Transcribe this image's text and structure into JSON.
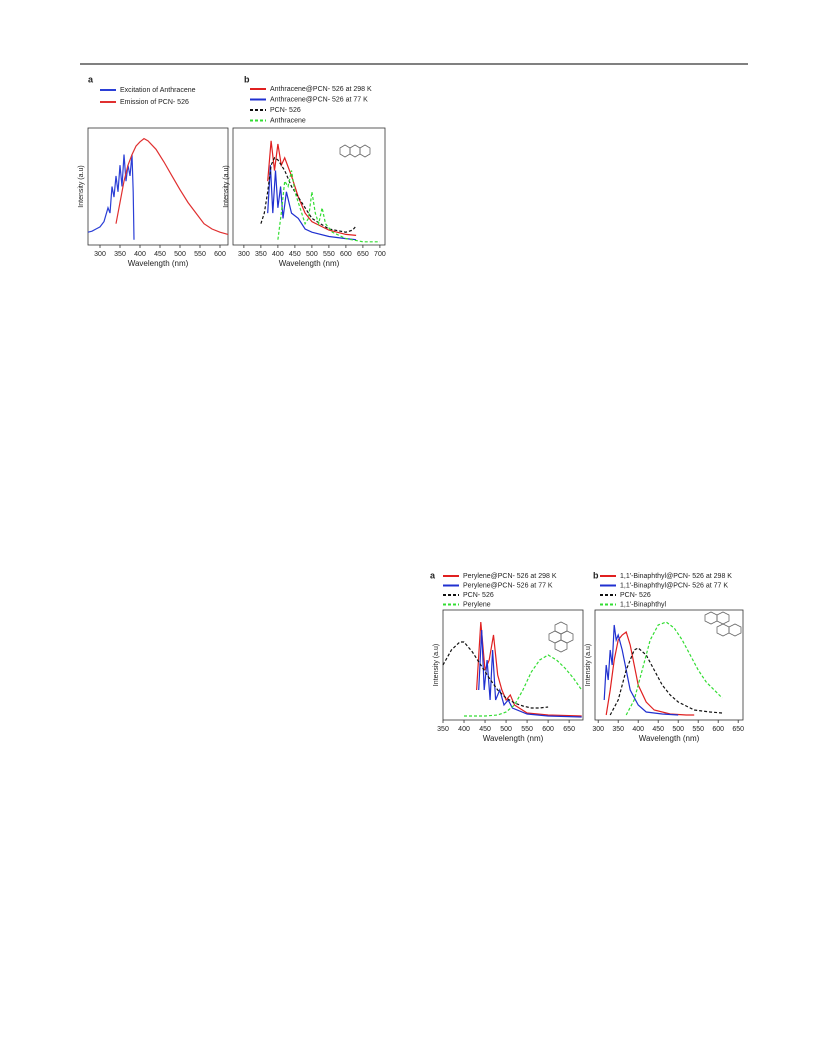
{
  "chart_data": [
    {
      "type": "line",
      "panel": "a",
      "xlabel": "Wavelength (nm)",
      "ylabel": "Intensity (a.u)",
      "xlim": [
        270,
        620
      ],
      "xticks": [
        300,
        350,
        400,
        450,
        500,
        550,
        600
      ],
      "ylim": [
        0,
        1.1
      ],
      "series": [
        {
          "name": "Excitation of Anthracene",
          "color": "#2b3fd6",
          "dash": false,
          "x": [
            270,
            280,
            290,
            300,
            310,
            320,
            325,
            330,
            335,
            340,
            345,
            350,
            355,
            360,
            365,
            370,
            375,
            380,
            383,
            385
          ],
          "values": [
            0.12,
            0.13,
            0.15,
            0.17,
            0.22,
            0.35,
            0.3,
            0.55,
            0.45,
            0.65,
            0.5,
            0.75,
            0.55,
            0.85,
            0.6,
            0.75,
            0.65,
            0.85,
            0.5,
            0.05
          ]
        },
        {
          "name": "Emission of PCN- 526",
          "color": "#e03030",
          "dash": false,
          "x": [
            340,
            350,
            360,
            370,
            380,
            390,
            400,
            410,
            420,
            440,
            460,
            480,
            500,
            520,
            540,
            560,
            580,
            600,
            620
          ],
          "values": [
            0.2,
            0.4,
            0.6,
            0.75,
            0.85,
            0.93,
            0.97,
            1.0,
            0.98,
            0.9,
            0.78,
            0.65,
            0.52,
            0.4,
            0.3,
            0.2,
            0.15,
            0.12,
            0.1
          ]
        }
      ]
    },
    {
      "type": "line",
      "panel": "b",
      "xlabel": "Wavelength (nm)",
      "ylabel": "Intensity (a.u)",
      "xlim": [
        268,
        715
      ],
      "xticks": [
        300,
        350,
        400,
        450,
        500,
        550,
        600,
        650,
        700
      ],
      "ylim": [
        0,
        1.1
      ],
      "series": [
        {
          "name": "Anthracene@PCN- 526 at 298 K",
          "color": "#e02020",
          "dash": false,
          "x": [
            370,
            380,
            390,
            400,
            410,
            420,
            440,
            460,
            480,
            500,
            550,
            600,
            630
          ],
          "values": [
            0.6,
            0.98,
            0.7,
            0.95,
            0.75,
            0.82,
            0.65,
            0.45,
            0.3,
            0.22,
            0.14,
            0.1,
            0.09
          ]
        },
        {
          "name": "Anthracene@PCN- 526 at 77 K",
          "color": "#2030d0",
          "dash": false,
          "x": [
            370,
            378,
            385,
            393,
            400,
            408,
            415,
            425,
            440,
            460,
            480,
            500,
            550,
            600,
            630
          ],
          "values": [
            0.3,
            0.75,
            0.3,
            0.7,
            0.35,
            0.55,
            0.25,
            0.5,
            0.3,
            0.25,
            0.15,
            0.12,
            0.08,
            0.06,
            0.05
          ]
        },
        {
          "name": "PCN- 526",
          "color": "#111111",
          "dash": true,
          "x": [
            350,
            360,
            370,
            380,
            390,
            400,
            420,
            440,
            460,
            480,
            500,
            550,
            600,
            620,
            630
          ],
          "values": [
            0.2,
            0.3,
            0.5,
            0.75,
            0.82,
            0.8,
            0.7,
            0.55,
            0.45,
            0.35,
            0.25,
            0.15,
            0.12,
            0.14,
            0.18
          ]
        },
        {
          "name": "Anthracene",
          "color": "#33dd33",
          "dash": true,
          "x": [
            400,
            410,
            420,
            430,
            440,
            450,
            460,
            470,
            480,
            490,
            500,
            510,
            520,
            530,
            540,
            560,
            600,
            650,
            700
          ],
          "values": [
            0.05,
            0.3,
            0.6,
            0.55,
            0.7,
            0.5,
            0.4,
            0.3,
            0.2,
            0.25,
            0.5,
            0.3,
            0.2,
            0.35,
            0.2,
            0.12,
            0.06,
            0.03,
            0.03
          ]
        }
      ]
    },
    {
      "type": "line",
      "panel": "a",
      "xlabel": "Wavelength (nm)",
      "ylabel": "Intensity (a.u)",
      "xlim": [
        350,
        683
      ],
      "xticks": [
        350,
        400,
        450,
        500,
        550,
        600,
        650
      ],
      "ylim": [
        0,
        1.1
      ],
      "series": [
        {
          "name": "Perylene@PCN- 526 at 298 K",
          "color": "#e02020",
          "dash": false,
          "x": [
            430,
            440,
            450,
            460,
            470,
            480,
            490,
            500,
            510,
            520,
            550,
            600,
            680
          ],
          "values": [
            0.3,
            0.98,
            0.5,
            0.6,
            0.85,
            0.45,
            0.3,
            0.2,
            0.25,
            0.15,
            0.07,
            0.05,
            0.04
          ]
        },
        {
          "name": "Perylene@PCN- 526 at 77 K",
          "color": "#2030d0",
          "dash": false,
          "x": [
            435,
            442,
            448,
            455,
            462,
            468,
            475,
            485,
            495,
            505,
            515,
            550,
            600,
            680
          ],
          "values": [
            0.3,
            0.9,
            0.3,
            0.6,
            0.2,
            0.7,
            0.2,
            0.3,
            0.15,
            0.2,
            0.12,
            0.06,
            0.04,
            0.03
          ]
        },
        {
          "name": "PCN- 526",
          "color": "#111111",
          "dash": true,
          "x": [
            350,
            370,
            390,
            400,
            420,
            440,
            460,
            480,
            500,
            520,
            540,
            560,
            580,
            600
          ],
          "values": [
            0.55,
            0.7,
            0.78,
            0.78,
            0.68,
            0.55,
            0.42,
            0.3,
            0.22,
            0.17,
            0.14,
            0.12,
            0.12,
            0.13
          ]
        },
        {
          "name": "Perylene",
          "color": "#33dd33",
          "dash": true,
          "x": [
            400,
            450,
            480,
            500,
            520,
            540,
            560,
            580,
            600,
            620,
            640,
            660,
            680
          ],
          "values": [
            0.04,
            0.04,
            0.05,
            0.08,
            0.15,
            0.3,
            0.48,
            0.6,
            0.65,
            0.6,
            0.52,
            0.42,
            0.3
          ]
        }
      ]
    },
    {
      "type": "line",
      "panel": "b",
      "xlabel": "Wavelength (nm)",
      "ylabel": "Intensity (a.u)",
      "xlim": [
        292,
        662
      ],
      "xticks": [
        300,
        350,
        400,
        450,
        500,
        550,
        600,
        650
      ],
      "ylim": [
        0,
        1.1
      ],
      "series": [
        {
          "name": "1,1'-Binaphthyl@PCN- 526 at 298 K",
          "color": "#e02020",
          "dash": false,
          "x": [
            320,
            330,
            340,
            350,
            360,
            370,
            380,
            390,
            400,
            420,
            440,
            480,
            520,
            540
          ],
          "values": [
            0.05,
            0.3,
            0.6,
            0.8,
            0.85,
            0.88,
            0.75,
            0.55,
            0.35,
            0.18,
            0.1,
            0.06,
            0.05,
            0.05
          ]
        },
        {
          "name": "1,1'-Binaphthyl@PCN- 526 at 77 K",
          "color": "#2030d0",
          "dash": false,
          "x": [
            315,
            320,
            325,
            330,
            335,
            340,
            345,
            350,
            360,
            370,
            380,
            400,
            420,
            460,
            500
          ],
          "values": [
            0.2,
            0.55,
            0.4,
            0.7,
            0.55,
            0.95,
            0.8,
            0.85,
            0.7,
            0.5,
            0.3,
            0.15,
            0.08,
            0.06,
            0.05
          ]
        },
        {
          "name": "PCN- 526",
          "color": "#111111",
          "dash": true,
          "x": [
            330,
            350,
            370,
            390,
            400,
            420,
            440,
            460,
            480,
            500,
            540,
            580,
            610
          ],
          "values": [
            0.05,
            0.2,
            0.5,
            0.7,
            0.72,
            0.65,
            0.5,
            0.35,
            0.25,
            0.18,
            0.1,
            0.08,
            0.07
          ]
        },
        {
          "name": "1,1'-Binaphthyl",
          "color": "#33dd33",
          "dash": true,
          "x": [
            370,
            390,
            410,
            430,
            450,
            470,
            490,
            510,
            530,
            550,
            570,
            590,
            610
          ],
          "values": [
            0.05,
            0.2,
            0.5,
            0.8,
            0.95,
            0.98,
            0.92,
            0.8,
            0.65,
            0.5,
            0.38,
            0.3,
            0.22
          ]
        }
      ]
    }
  ]
}
